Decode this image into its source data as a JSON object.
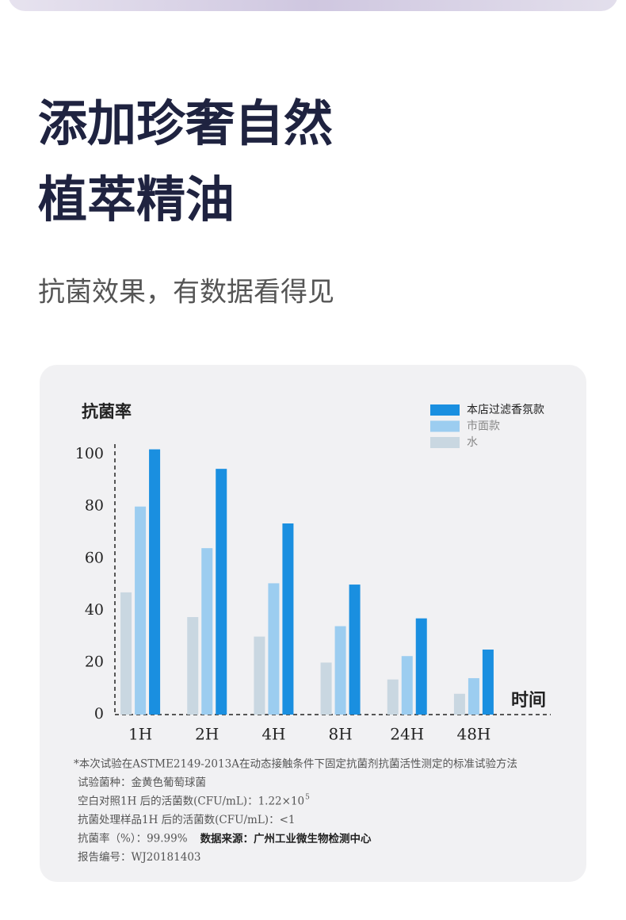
{
  "headline": [
    "添加珍奢自然",
    "植萃精油"
  ],
  "subtitle": "抗菌效果，有数据看得见",
  "chart_data": {
    "type": "bar",
    "y_label": "抗菌率",
    "x_label": "时间",
    "categories": [
      "1H",
      "2H",
      "4H",
      "8H",
      "24H",
      "48H"
    ],
    "series": [
      {
        "name": "本店过滤香氛款",
        "color": "#1a8fe0",
        "values": [
          102,
          94.5,
          73.5,
          50,
          37,
          25
        ]
      },
      {
        "name": "市面款",
        "color": "#9ccdf0",
        "values": [
          80,
          64,
          50.5,
          34,
          22.5,
          14
        ]
      },
      {
        "name": "水",
        "color": "#c9d7e1",
        "values": [
          47,
          37.5,
          30,
          20,
          13.5,
          8
        ]
      }
    ],
    "ylim": [
      0,
      104
    ],
    "yticks": [
      0,
      20,
      40,
      60,
      80,
      100
    ],
    "notes": [
      "*本次试验在ASTME2149-2013A在动态接触条件下固定抗菌剂抗菌活性测定的标准试验方法",
      "试验菌种：金黄色葡萄球菌",
      "空白对照1H 后的活菌数(CFU/mL)：1.22×10",
      "抗菌处理样品1H 后的活菌数(CFU/mL)：<1",
      "抗菌率（%）：99.99%",
      "报告编号：WJ20181403"
    ],
    "note_superscript": "5",
    "source": "数据来源：广州工业微生物检测中心"
  }
}
